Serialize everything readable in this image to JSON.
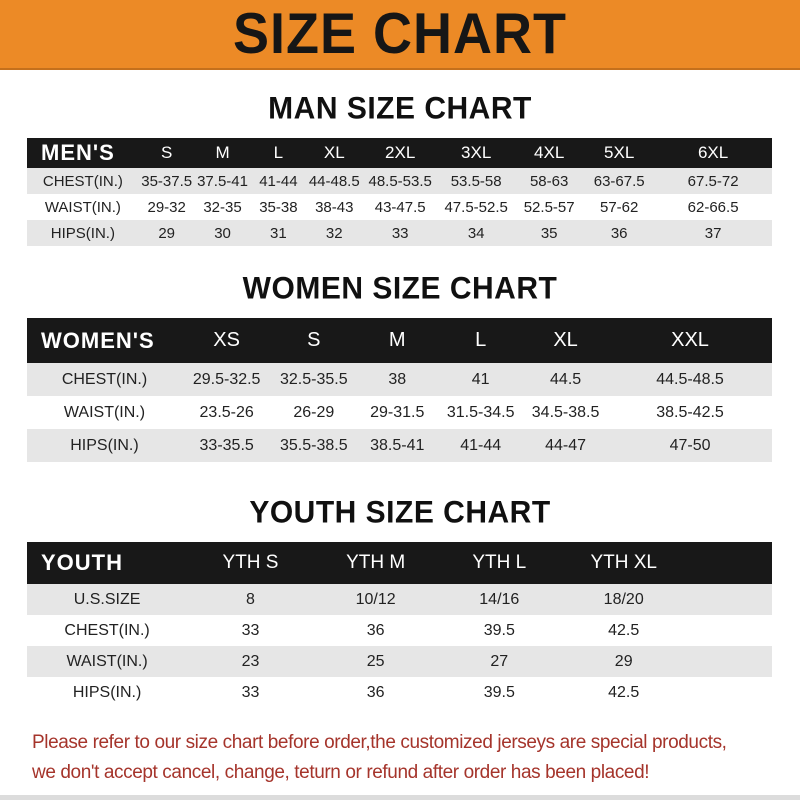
{
  "banner": {
    "title": "SIZE CHART"
  },
  "colors": {
    "banner_bg": "#EC8A26",
    "header_bar_bg": "#181818",
    "row_alt_bg": "#E6E6E6",
    "footnote_text": "#A5342B"
  },
  "sections": [
    {
      "heading": "MAN SIZE CHART",
      "header": [
        "MEN'S",
        "S",
        "M",
        "L",
        "XL",
        "2XL",
        "3XL",
        "4XL",
        "5XL",
        "6XL"
      ],
      "rows": [
        [
          "CHEST(IN.)",
          "35-37.5",
          "37.5-41",
          "41-44",
          "44-48.5",
          "48.5-53.5",
          "53.5-58",
          "58-63",
          "63-67.5",
          "67.5-72"
        ],
        [
          "WAIST(IN.)",
          "29-32",
          "32-35",
          "35-38",
          "38-43",
          "43-47.5",
          "47.5-52.5",
          "52.5-57",
          "57-62",
          "62-66.5"
        ],
        [
          "HIPS(IN.)",
          "29",
          "30",
          "31",
          "32",
          "33",
          "34",
          "35",
          "36",
          "37"
        ]
      ]
    },
    {
      "heading": "WOMEN SIZE CHART",
      "header": [
        "WOMEN'S",
        "XS",
        "S",
        "M",
        "L",
        "XL",
        "XXL"
      ],
      "rows": [
        [
          "CHEST(IN.)",
          "29.5-32.5",
          "32.5-35.5",
          "38",
          "41",
          "44.5",
          "44.5-48.5"
        ],
        [
          "WAIST(IN.)",
          "23.5-26",
          "26-29",
          "29-31.5",
          "31.5-34.5",
          "34.5-38.5",
          "38.5-42.5"
        ],
        [
          "HIPS(IN.)",
          "33-35.5",
          "35.5-38.5",
          "38.5-41",
          "41-44",
          "44-47",
          "47-50"
        ]
      ]
    },
    {
      "heading": "YOUTH SIZE CHART",
      "header": [
        "YOUTH",
        "YTH S",
        "YTH M",
        "YTH L",
        "YTH XL"
      ],
      "rows": [
        [
          "U.S.SIZE",
          "8",
          "10/12",
          "14/16",
          "18/20"
        ],
        [
          "CHEST(IN.)",
          "33",
          "36",
          "39.5",
          "42.5"
        ],
        [
          "WAIST(IN.)",
          "23",
          "25",
          "27",
          "29"
        ],
        [
          "HIPS(IN.)",
          "33",
          "36",
          "39.5",
          "42.5"
        ]
      ]
    }
  ],
  "footnote": {
    "line1": "Please refer to our size chart before order,the customized jerseys are special products,",
    "line2": "we don't accept cancel, change, teturn or refund after order has been placed!"
  }
}
